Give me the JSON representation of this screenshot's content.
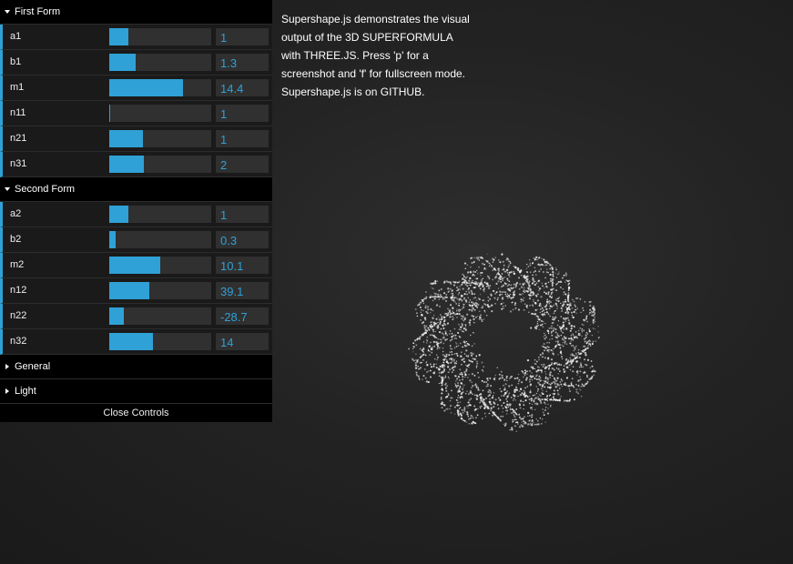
{
  "info_text": "Supershape.js demonstrates the visual output of the 3D SUPERFORMULA with THREE.JS. Press 'p' for a screenshot and 'f' for fullscreen mode. Supershape.js is on GITHUB.",
  "colors": {
    "accent": "#2fa1d6",
    "panel_bg": "#1a1a1a",
    "folder_bg": "#000000",
    "track_bg": "#303030"
  },
  "folders": {
    "first": {
      "title": "First Form",
      "rows": [
        {
          "label": "a1",
          "value": "1",
          "fill": 0.19
        },
        {
          "label": "b1",
          "value": "1.3",
          "fill": 0.26
        },
        {
          "label": "m1",
          "value": "14.4",
          "fill": 0.72
        },
        {
          "label": "n11",
          "value": "1",
          "fill": 0.01
        },
        {
          "label": "n21",
          "value": "1",
          "fill": 0.33
        },
        {
          "label": "n31",
          "value": "2",
          "fill": 0.34
        }
      ]
    },
    "second": {
      "title": "Second Form",
      "rows": [
        {
          "label": "a2",
          "value": "1",
          "fill": 0.19
        },
        {
          "label": "b2",
          "value": "0.3",
          "fill": 0.06
        },
        {
          "label": "m2",
          "value": "10.1",
          "fill": 0.5
        },
        {
          "label": "n12",
          "value": "39.1",
          "fill": 0.39
        },
        {
          "label": "n22",
          "value": "-28.7",
          "fill": 0.14
        },
        {
          "label": "n32",
          "value": "14",
          "fill": 0.43
        }
      ]
    },
    "general": {
      "title": "General"
    },
    "light": {
      "title": "Light"
    }
  },
  "close_controls": "Close Controls"
}
